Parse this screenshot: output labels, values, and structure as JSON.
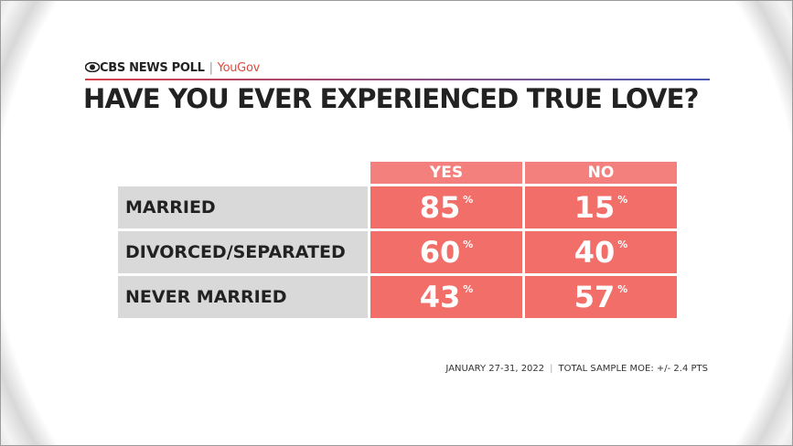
{
  "header": {
    "brand": "CBS NEWS POLL",
    "partner": "YouGov",
    "title": "HAVE YOU EVER EXPERIENCED TRUE LOVE?"
  },
  "table": {
    "columns": [
      "YES",
      "NO"
    ],
    "unit": "%",
    "rows": [
      {
        "label": "MARRIED",
        "values": [
          85,
          15
        ]
      },
      {
        "label": "DIVORCED/SEPARATED",
        "values": [
          60,
          40
        ]
      },
      {
        "label": "NEVER MARRIED",
        "values": [
          43,
          57
        ]
      }
    ]
  },
  "footer": {
    "dates": "JANUARY 27-31, 2022",
    "moe": "TOTAL SAMPLE MOE: +/- 2.4 PTS"
  }
}
